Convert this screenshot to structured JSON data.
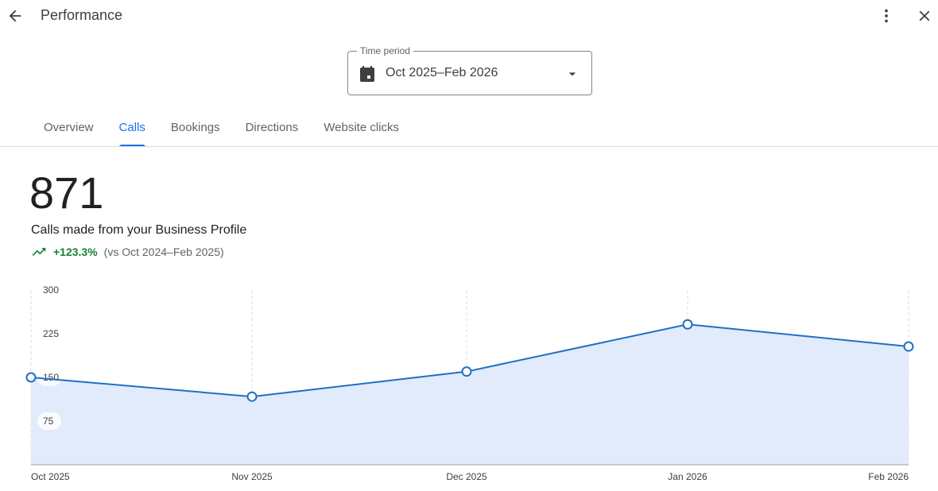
{
  "header": {
    "title": "Performance",
    "back_icon": "arrow-back-icon",
    "more_icon": "more-vert-icon",
    "close_icon": "close-icon"
  },
  "time_period": {
    "label": "Time period",
    "value": "Oct 2025–Feb 2026"
  },
  "tabs": [
    {
      "label": "Overview"
    },
    {
      "label": "Calls",
      "active": true
    },
    {
      "label": "Bookings"
    },
    {
      "label": "Directions"
    },
    {
      "label": "Website clicks"
    }
  ],
  "summary": {
    "total": "871",
    "description": "Calls made from your Business Profile",
    "change": "+123.3%",
    "comparison": "(vs Oct 2024–Feb 2025)"
  },
  "colors": {
    "accent": "#1a73e8",
    "line": "#1f6fc5",
    "fill": "#e1ebfb",
    "positive": "#188038"
  },
  "chart_data": {
    "type": "area",
    "categories": [
      "Oct 2025",
      "Nov 2025",
      "Dec 2025",
      "Jan 2026",
      "Feb 2026"
    ],
    "values": [
      150,
      117,
      160,
      241,
      203
    ],
    "yticks": [
      "75",
      "150",
      "225",
      "300"
    ],
    "ylim": [
      0,
      300
    ],
    "grid": "vertical dashed",
    "title": "",
    "xlabel": "",
    "ylabel": ""
  }
}
